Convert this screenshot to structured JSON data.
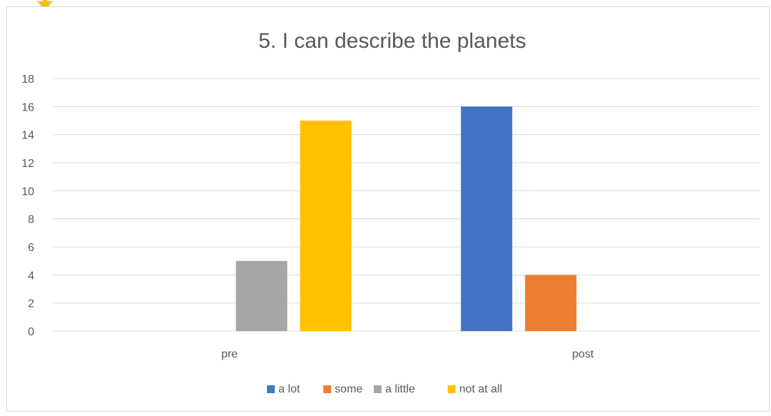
{
  "chart_data": {
    "type": "bar",
    "title": "5. I can describe the planets",
    "xlabel": "",
    "ylabel": "",
    "categories": [
      "pre",
      "post"
    ],
    "series": [
      {
        "name": "a lot",
        "color": "#4472c4",
        "values": [
          0,
          16
        ]
      },
      {
        "name": "some",
        "color": "#ed7d31",
        "values": [
          0,
          4
        ]
      },
      {
        "name": "a little",
        "color": "#a5a5a5",
        "values": [
          5,
          0
        ]
      },
      {
        "name": "not at all",
        "color": "#ffc000",
        "values": [
          15,
          0
        ]
      }
    ],
    "ylim": [
      0,
      18
    ],
    "yticks": [
      0,
      2,
      4,
      6,
      8,
      10,
      12,
      14,
      16,
      18
    ],
    "grid": true,
    "legend_position": "bottom"
  },
  "badge_icon": "star-icon",
  "badge_color": "#f4b183"
}
